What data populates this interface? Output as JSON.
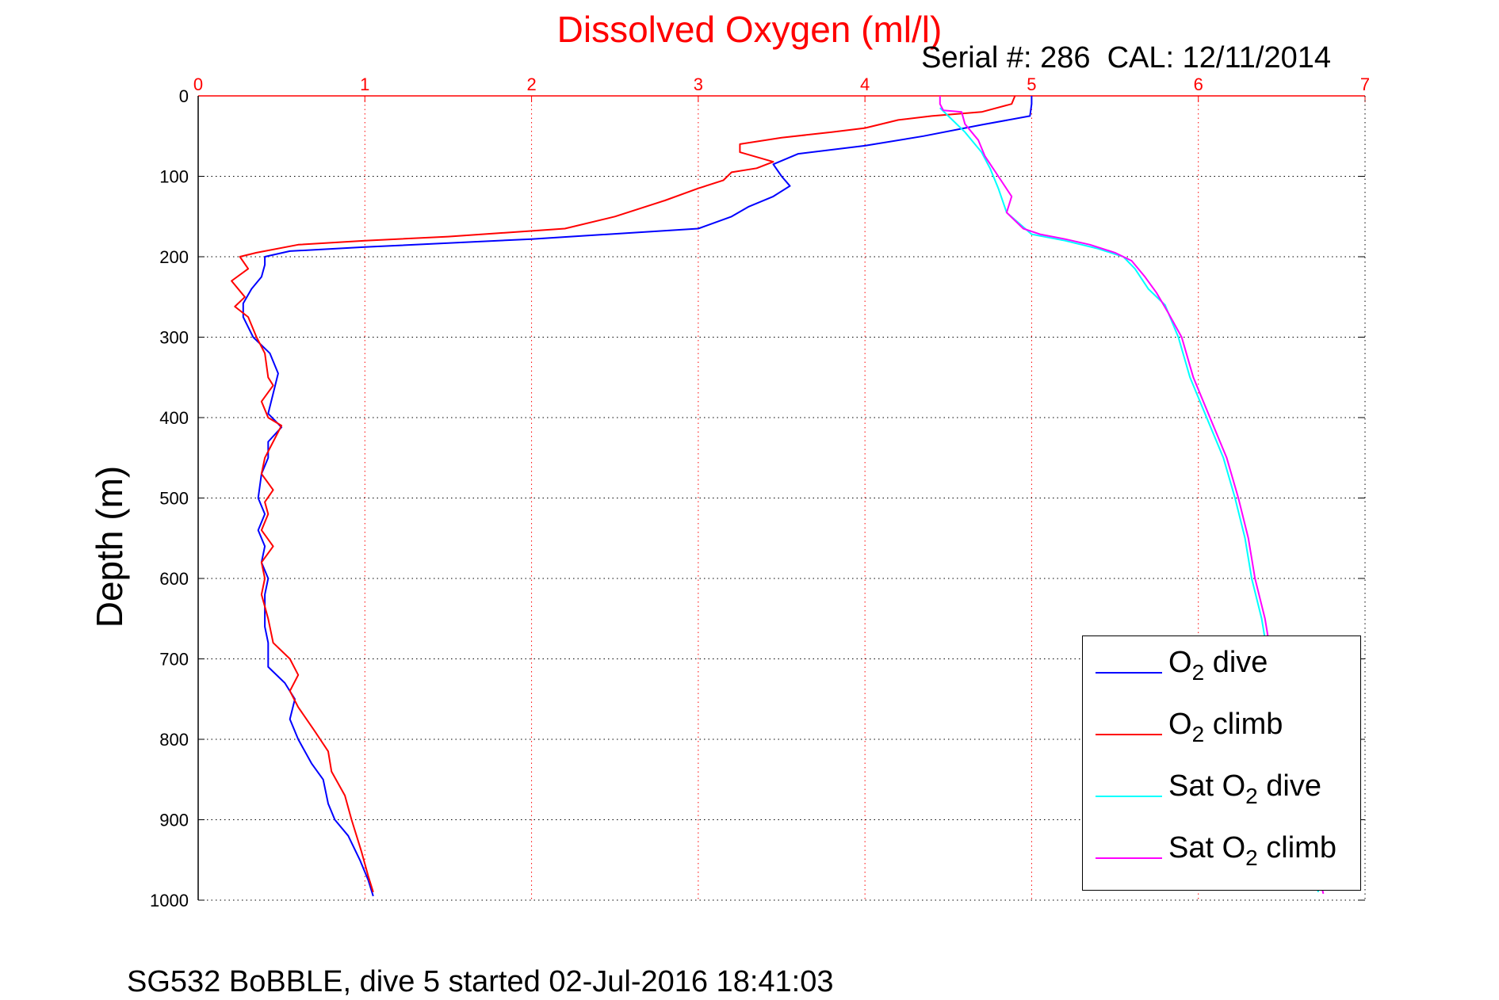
{
  "title": "Dissolved Oxygen (ml/l)",
  "serial_text": "Serial #: 286  CAL: 12/11/2014",
  "footer_text": "SG532 BoBBLE, dive 5 started 02-Jul-2016 18:41:03",
  "colors": {
    "title": "#ff0000",
    "x_axis": "#ff0000",
    "o2_dive": "#0000ff",
    "o2_climb": "#ff0000",
    "sat_dive": "#00ffff",
    "sat_climb": "#ff00ff"
  },
  "legend": {
    "position": "bottom-right",
    "items": [
      {
        "pre": "O",
        "sub": "2",
        "post": " dive",
        "color": "#0000ff"
      },
      {
        "pre": "O",
        "sub": "2",
        "post": " climb",
        "color": "#ff0000"
      },
      {
        "pre": "Sat O",
        "sub": "2",
        "post": " dive",
        "color": "#00ffff"
      },
      {
        "pre": "Sat O",
        "sub": "2",
        "post": " climb",
        "color": "#ff00ff"
      }
    ]
  },
  "chart_data": {
    "type": "line",
    "title": "Dissolved Oxygen (ml/l)",
    "xlabel": "",
    "ylabel": "Depth (m)",
    "x_axis_position": "top",
    "y_axis_reversed": true,
    "xlim": [
      0,
      7
    ],
    "ylim": [
      0,
      1000
    ],
    "xticks": [
      "0",
      "1",
      "2",
      "3",
      "4",
      "5",
      "6",
      "7"
    ],
    "yticks": [
      "0",
      "100",
      "200",
      "300",
      "400",
      "500",
      "600",
      "700",
      "800",
      "900",
      "1000"
    ],
    "grid": true,
    "series": [
      {
        "name": "O2 dive",
        "color": "#0000ff",
        "points": [
          [
            5.0,
            0
          ],
          [
            5.0,
            10
          ],
          [
            4.99,
            25
          ],
          [
            4.7,
            36
          ],
          [
            4.35,
            50
          ],
          [
            4.0,
            62
          ],
          [
            3.6,
            72
          ],
          [
            3.45,
            85
          ],
          [
            3.5,
            100
          ],
          [
            3.55,
            112
          ],
          [
            3.45,
            125
          ],
          [
            3.3,
            138
          ],
          [
            3.2,
            150
          ],
          [
            3.0,
            165
          ],
          [
            2.0,
            178
          ],
          [
            1.0,
            188
          ],
          [
            0.55,
            193
          ],
          [
            0.4,
            200
          ],
          [
            0.4,
            210
          ],
          [
            0.38,
            225
          ],
          [
            0.32,
            240
          ],
          [
            0.27,
            258
          ],
          [
            0.27,
            275
          ],
          [
            0.33,
            300
          ],
          [
            0.43,
            320
          ],
          [
            0.48,
            345
          ],
          [
            0.45,
            370
          ],
          [
            0.42,
            395
          ],
          [
            0.5,
            412
          ],
          [
            0.42,
            430
          ],
          [
            0.42,
            450
          ],
          [
            0.38,
            470
          ],
          [
            0.36,
            500
          ],
          [
            0.4,
            520
          ],
          [
            0.36,
            540
          ],
          [
            0.4,
            560
          ],
          [
            0.38,
            580
          ],
          [
            0.42,
            600
          ],
          [
            0.4,
            620
          ],
          [
            0.4,
            640
          ],
          [
            0.4,
            660
          ],
          [
            0.42,
            680
          ],
          [
            0.42,
            710
          ],
          [
            0.52,
            730
          ],
          [
            0.58,
            750
          ],
          [
            0.55,
            775
          ],
          [
            0.6,
            800
          ],
          [
            0.68,
            830
          ],
          [
            0.75,
            850
          ],
          [
            0.78,
            880
          ],
          [
            0.82,
            900
          ],
          [
            0.9,
            920
          ],
          [
            0.97,
            950
          ],
          [
            1.02,
            975
          ],
          [
            1.05,
            995
          ]
        ]
      },
      {
        "name": "O2 climb",
        "color": "#ff0000",
        "points": [
          [
            4.9,
            0
          ],
          [
            4.88,
            10
          ],
          [
            4.7,
            20
          ],
          [
            4.4,
            25
          ],
          [
            4.2,
            30
          ],
          [
            4.0,
            40
          ],
          [
            3.8,
            45
          ],
          [
            3.5,
            52
          ],
          [
            3.25,
            60
          ],
          [
            3.25,
            70
          ],
          [
            3.45,
            82
          ],
          [
            3.35,
            90
          ],
          [
            3.2,
            95
          ],
          [
            3.15,
            105
          ],
          [
            3.0,
            115
          ],
          [
            2.8,
            130
          ],
          [
            2.5,
            150
          ],
          [
            2.2,
            165
          ],
          [
            1.5,
            175
          ],
          [
            1.0,
            180
          ],
          [
            0.6,
            185
          ],
          [
            0.35,
            195
          ],
          [
            0.25,
            200
          ],
          [
            0.3,
            215
          ],
          [
            0.2,
            230
          ],
          [
            0.28,
            250
          ],
          [
            0.22,
            262
          ],
          [
            0.3,
            275
          ],
          [
            0.35,
            300
          ],
          [
            0.4,
            320
          ],
          [
            0.42,
            350
          ],
          [
            0.45,
            360
          ],
          [
            0.38,
            380
          ],
          [
            0.42,
            400
          ],
          [
            0.5,
            410
          ],
          [
            0.45,
            430
          ],
          [
            0.4,
            450
          ],
          [
            0.38,
            470
          ],
          [
            0.45,
            490
          ],
          [
            0.4,
            505
          ],
          [
            0.42,
            520
          ],
          [
            0.38,
            540
          ],
          [
            0.45,
            560
          ],
          [
            0.38,
            580
          ],
          [
            0.4,
            600
          ],
          [
            0.38,
            620
          ],
          [
            0.42,
            650
          ],
          [
            0.45,
            680
          ],
          [
            0.55,
            700
          ],
          [
            0.6,
            720
          ],
          [
            0.55,
            740
          ],
          [
            0.6,
            760
          ],
          [
            0.7,
            790
          ],
          [
            0.78,
            815
          ],
          [
            0.8,
            840
          ],
          [
            0.88,
            870
          ],
          [
            0.92,
            900
          ],
          [
            0.98,
            940
          ],
          [
            1.02,
            970
          ],
          [
            1.05,
            990
          ]
        ]
      },
      {
        "name": "Sat O2 dive",
        "color": "#00ffff",
        "points": [
          [
            4.45,
            15
          ],
          [
            4.5,
            25
          ],
          [
            4.6,
            45
          ],
          [
            4.7,
            70
          ],
          [
            4.75,
            90
          ],
          [
            4.8,
            115
          ],
          [
            4.85,
            145
          ],
          [
            5.0,
            172
          ],
          [
            5.2,
            180
          ],
          [
            5.4,
            190
          ],
          [
            5.55,
            200
          ],
          [
            5.62,
            215
          ],
          [
            5.7,
            240
          ],
          [
            5.8,
            260
          ],
          [
            5.88,
            300
          ],
          [
            5.95,
            350
          ],
          [
            6.05,
            400
          ],
          [
            6.15,
            450
          ],
          [
            6.22,
            500
          ],
          [
            6.28,
            550
          ],
          [
            6.32,
            600
          ],
          [
            6.38,
            650
          ],
          [
            6.42,
            700
          ],
          [
            6.47,
            750
          ],
          [
            6.52,
            800
          ],
          [
            6.57,
            850
          ],
          [
            6.62,
            900
          ],
          [
            6.67,
            950
          ],
          [
            6.72,
            990
          ]
        ]
      },
      {
        "name": "Sat O2 climb",
        "color": "#ff00ff",
        "points": [
          [
            4.45,
            0
          ],
          [
            4.45,
            10
          ],
          [
            4.47,
            18
          ],
          [
            4.58,
            20
          ],
          [
            4.6,
            35
          ],
          [
            4.68,
            55
          ],
          [
            4.72,
            75
          ],
          [
            4.8,
            100
          ],
          [
            4.88,
            125
          ],
          [
            4.85,
            145
          ],
          [
            4.95,
            165
          ],
          [
            5.05,
            172
          ],
          [
            5.2,
            178
          ],
          [
            5.35,
            185
          ],
          [
            5.5,
            195
          ],
          [
            5.6,
            205
          ],
          [
            5.68,
            225
          ],
          [
            5.75,
            245
          ],
          [
            5.82,
            270
          ],
          [
            5.9,
            300
          ],
          [
            5.97,
            350
          ],
          [
            6.07,
            400
          ],
          [
            6.17,
            450
          ],
          [
            6.24,
            500
          ],
          [
            6.3,
            550
          ],
          [
            6.34,
            600
          ],
          [
            6.4,
            650
          ],
          [
            6.44,
            700
          ],
          [
            6.5,
            750
          ],
          [
            6.55,
            800
          ],
          [
            6.6,
            850
          ],
          [
            6.65,
            900
          ],
          [
            6.7,
            950
          ],
          [
            6.75,
            992
          ]
        ]
      }
    ]
  }
}
